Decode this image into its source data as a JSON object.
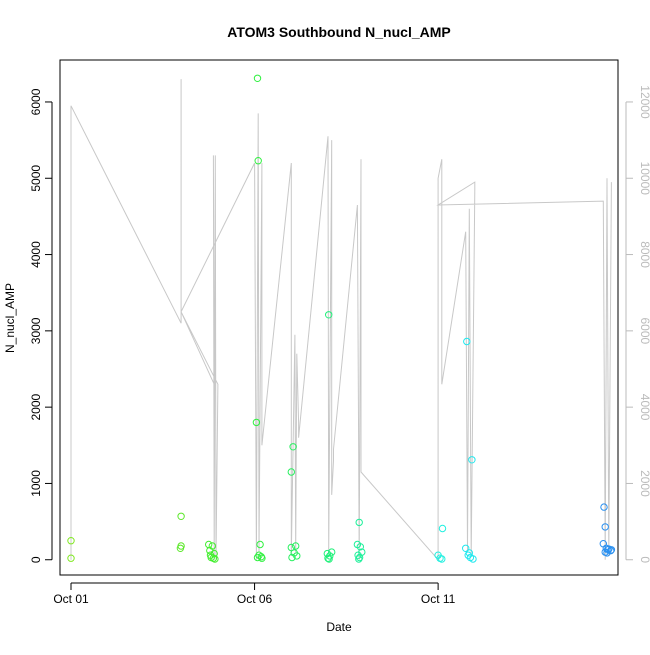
{
  "chart_data": {
    "type": "scatter",
    "title": "ATOM3 Southbound N_nucl_AMP",
    "xlabel": "Date",
    "ylabel": "N_nucl_AMP",
    "x_ticks": [
      "Oct 01",
      "Oct 06",
      "Oct 11"
    ],
    "x_tick_days": [
      1,
      6,
      11
    ],
    "xlim_days": [
      0.7,
      15.9
    ],
    "ylim": [
      -200,
      6550
    ],
    "y_ticks": [
      0,
      1000,
      2000,
      3000,
      4000,
      5000,
      6000
    ],
    "y2lim": [
      -400,
      13100
    ],
    "y2_ticks": [
      0,
      2000,
      4000,
      6000,
      8000,
      10000,
      12000
    ],
    "secondary_line_color": "#c8c8c8",
    "secondary_axis_color": "#bbbbbb",
    "point_series": {
      "name": "N_nucl_AMP",
      "points": [
        {
          "day": 1.0,
          "y": 250,
          "color": "#80e820"
        },
        {
          "day": 1.0,
          "y": 20,
          "color": "#80e820"
        },
        {
          "day": 4.0,
          "y": 570,
          "color": "#5ce82a"
        },
        {
          "day": 4.0,
          "y": 180,
          "color": "#5ce82a"
        },
        {
          "day": 3.98,
          "y": 150,
          "color": "#5ce82a"
        },
        {
          "day": 4.75,
          "y": 200,
          "color": "#44ee30"
        },
        {
          "day": 4.78,
          "y": 120,
          "color": "#44ee30"
        },
        {
          "day": 4.8,
          "y": 60,
          "color": "#44ee30"
        },
        {
          "day": 4.82,
          "y": 30,
          "color": "#44ee30"
        },
        {
          "day": 4.85,
          "y": 180,
          "color": "#44ee30"
        },
        {
          "day": 4.88,
          "y": 20,
          "color": "#44ee30"
        },
        {
          "day": 4.9,
          "y": 80,
          "color": "#44ee30"
        },
        {
          "day": 4.92,
          "y": 10,
          "color": "#44ee30"
        },
        {
          "day": 6.08,
          "y": 6310,
          "color": "#30f040"
        },
        {
          "day": 6.1,
          "y": 5230,
          "color": "#30f040"
        },
        {
          "day": 6.05,
          "y": 1800,
          "color": "#30f040"
        },
        {
          "day": 6.15,
          "y": 200,
          "color": "#30f040"
        },
        {
          "day": 6.12,
          "y": 60,
          "color": "#30f040"
        },
        {
          "day": 6.18,
          "y": 40,
          "color": "#30f040"
        },
        {
          "day": 6.2,
          "y": 20,
          "color": "#30f040"
        },
        {
          "day": 6.08,
          "y": 30,
          "color": "#30f040"
        },
        {
          "day": 7.0,
          "y": 1150,
          "color": "#28f060"
        },
        {
          "day": 7.05,
          "y": 1480,
          "color": "#28f060"
        },
        {
          "day": 7.0,
          "y": 160,
          "color": "#28f060"
        },
        {
          "day": 7.08,
          "y": 90,
          "color": "#28f060"
        },
        {
          "day": 7.12,
          "y": 180,
          "color": "#28f060"
        },
        {
          "day": 7.15,
          "y": 50,
          "color": "#28f060"
        },
        {
          "day": 7.02,
          "y": 30,
          "color": "#28f060"
        },
        {
          "day": 8.02,
          "y": 3210,
          "color": "#20f07a"
        },
        {
          "day": 7.98,
          "y": 80,
          "color": "#20f07a"
        },
        {
          "day": 8.05,
          "y": 50,
          "color": "#20f07a"
        },
        {
          "day": 8.1,
          "y": 100,
          "color": "#20f07a"
        },
        {
          "day": 8.0,
          "y": 20,
          "color": "#20f07a"
        },
        {
          "day": 8.03,
          "y": 10,
          "color": "#20f07a"
        },
        {
          "day": 8.85,
          "y": 490,
          "color": "#1ef09a"
        },
        {
          "day": 8.8,
          "y": 200,
          "color": "#1ef09a"
        },
        {
          "day": 8.88,
          "y": 170,
          "color": "#1ef09a"
        },
        {
          "day": 8.92,
          "y": 100,
          "color": "#1ef09a"
        },
        {
          "day": 8.82,
          "y": 60,
          "color": "#1ef09a"
        },
        {
          "day": 8.86,
          "y": 30,
          "color": "#1ef09a"
        },
        {
          "day": 8.84,
          "y": 10,
          "color": "#1ef09a"
        },
        {
          "day": 11.0,
          "y": 60,
          "color": "#22f0e0"
        },
        {
          "day": 11.05,
          "y": 20,
          "color": "#22f0e0"
        },
        {
          "day": 11.1,
          "y": 10,
          "color": "#22f0e0"
        },
        {
          "day": 11.12,
          "y": 410,
          "color": "#22f0e0"
        },
        {
          "day": 11.78,
          "y": 2860,
          "color": "#20e8ee"
        },
        {
          "day": 11.92,
          "y": 1310,
          "color": "#20e8ee"
        },
        {
          "day": 11.75,
          "y": 150,
          "color": "#20e8ee"
        },
        {
          "day": 11.82,
          "y": 60,
          "color": "#20e8ee"
        },
        {
          "day": 11.88,
          "y": 30,
          "color": "#20e8ee"
        },
        {
          "day": 11.95,
          "y": 10,
          "color": "#20e8ee"
        },
        {
          "day": 11.85,
          "y": 90,
          "color": "#20e8ee"
        },
        {
          "day": 15.52,
          "y": 690,
          "color": "#2a90f0"
        },
        {
          "day": 15.55,
          "y": 430,
          "color": "#2a90f0"
        },
        {
          "day": 15.5,
          "y": 210,
          "color": "#2a90f0"
        },
        {
          "day": 15.58,
          "y": 150,
          "color": "#2a90f0"
        },
        {
          "day": 15.62,
          "y": 130,
          "color": "#2a90f0"
        },
        {
          "day": 15.65,
          "y": 140,
          "color": "#2a90f0"
        },
        {
          "day": 15.7,
          "y": 120,
          "color": "#2a90f0"
        },
        {
          "day": 15.72,
          "y": 130,
          "color": "#2a90f0"
        },
        {
          "day": 15.55,
          "y": 100,
          "color": "#2a90f0"
        },
        {
          "day": 15.6,
          "y": 90,
          "color": "#2a90f0"
        }
      ]
    },
    "line_series": {
      "axis": "right",
      "points": [
        [
          1.0,
          0
        ],
        [
          1.0,
          11900
        ],
        [
          4.0,
          6200
        ],
        [
          4.0,
          12600
        ],
        [
          4.0,
          6500
        ],
        [
          4.9,
          4600
        ],
        [
          4.88,
          10600
        ],
        [
          4.9,
          0
        ],
        [
          4.93,
          10600
        ],
        [
          4.95,
          0
        ],
        [
          5.0,
          4600
        ],
        [
          4.0,
          6500
        ],
        [
          6.0,
          10400
        ],
        [
          6.05,
          0
        ],
        [
          6.1,
          11700
        ],
        [
          6.12,
          200
        ],
        [
          6.2,
          10400
        ],
        [
          6.2,
          3000
        ],
        [
          7.0,
          10400
        ],
        [
          7.0,
          100
        ],
        [
          7.1,
          5900
        ],
        [
          7.12,
          200
        ],
        [
          7.15,
          5400
        ],
        [
          7.2,
          3600
        ],
        [
          7.2,
          3200
        ],
        [
          8.0,
          11100
        ],
        [
          8.02,
          200
        ],
        [
          8.1,
          11000
        ],
        [
          8.1,
          1700
        ],
        [
          8.15,
          2600
        ],
        [
          8.15,
          2900
        ],
        [
          8.8,
          9300
        ],
        [
          8.85,
          0
        ],
        [
          8.9,
          10500
        ],
        [
          8.9,
          2300
        ],
        [
          11.0,
          0
        ],
        [
          11.0,
          9300
        ],
        [
          11.0,
          10000
        ],
        [
          11.1,
          10500
        ],
        [
          11.1,
          4600
        ],
        [
          11.75,
          8600
        ],
        [
          11.8,
          200
        ],
        [
          11.85,
          9200
        ],
        [
          11.9,
          100
        ],
        [
          12.0,
          9700
        ],
        [
          12.0,
          9900
        ],
        [
          11.0,
          9300
        ],
        [
          15.5,
          9400
        ],
        [
          15.55,
          0
        ],
        [
          15.6,
          10000
        ],
        [
          15.65,
          100
        ],
        [
          15.72,
          9900
        ]
      ]
    }
  }
}
